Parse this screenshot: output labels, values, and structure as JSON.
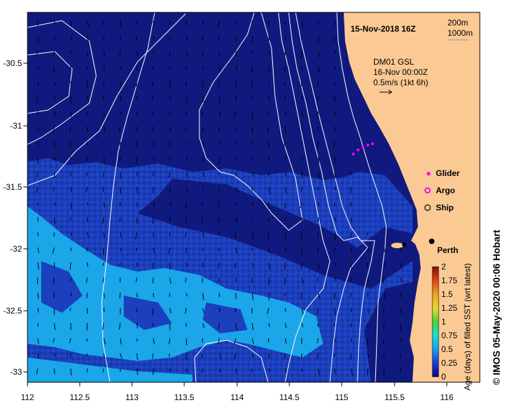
{
  "map": {
    "date_label": "15-Nov-2018 16Z",
    "depth_labels": [
      "200m",
      "1000m"
    ],
    "current_info": {
      "dataset": "DM01 GSL",
      "time": "16-Nov 00:00Z",
      "scale": "0.5m/s (1kt 6h)"
    },
    "city_label": "Perth",
    "x_ticks": [
      "112",
      "112.5",
      "113",
      "113.5",
      "114",
      "114.5",
      "115",
      "115.5",
      "116"
    ],
    "y_ticks": [
      "-30.5",
      "-31",
      "-31.5",
      "-32",
      "-32.5",
      "-33"
    ],
    "legend": {
      "glider": "Glider",
      "argo": "Argo",
      "ship": "Ship"
    },
    "colorbar": {
      "title": "Age (days) of filled SST (wrt latest)",
      "ticks": [
        "2",
        "1.75",
        "1.5",
        "1.25",
        "1",
        "0.75",
        "0.5",
        "0.25",
        "0"
      ]
    },
    "credit": "© IMOS 05-May-2020 00:06 Hobart",
    "colors": {
      "land": "#fbc994",
      "ocean_deep": "#101a7e",
      "ocean_mid": "#1b3fbd",
      "ocean_light": "#1aa6e8",
      "glider": "#ff00ff"
    }
  }
}
